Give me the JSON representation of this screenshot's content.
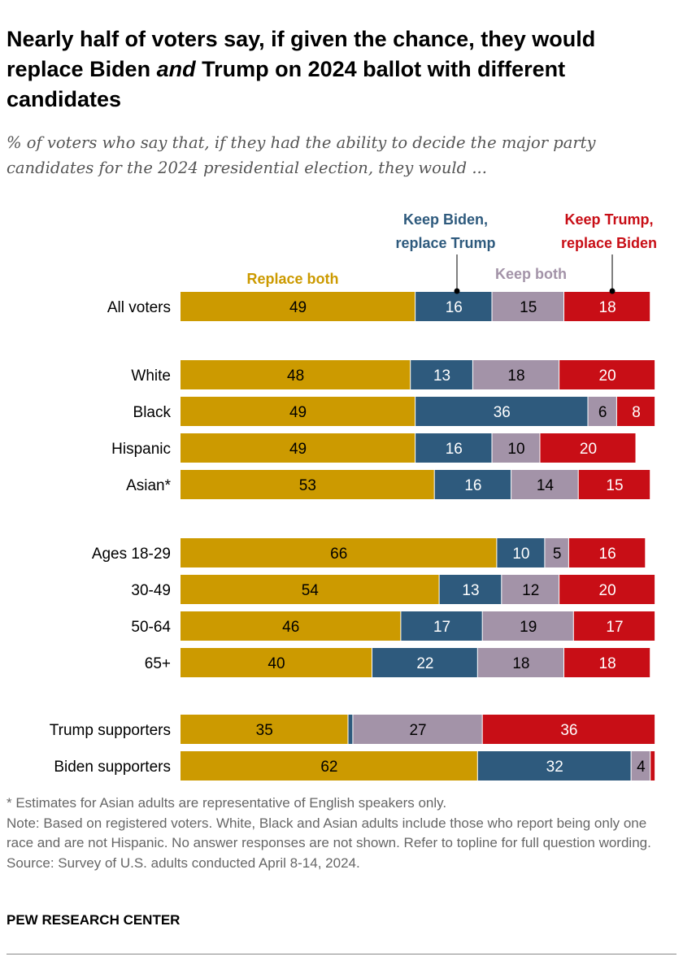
{
  "title_parts": [
    "Nearly half of voters say, if given the chance, they would replace Biden ",
    "and",
    " Trump on 2024 ballot with different candidates"
  ],
  "subtitle": "% of voters who say that, if they had the ability to decide the major party candidates for the 2024 presidential election, they would ...",
  "chart_data": {
    "type": "bar",
    "orientation": "horizontal",
    "stacked": true,
    "categories": [
      "All voters",
      "White",
      "Black",
      "Hispanic",
      "Asian*",
      "Ages 18-29",
      "30-49",
      "50-64",
      "65+",
      "Trump supporters",
      "Biden supporters"
    ],
    "series": [
      {
        "name": "Replace both",
        "color": "#CC9A00",
        "values": [
          49,
          48,
          49,
          49,
          53,
          66,
          54,
          46,
          40,
          35,
          62
        ]
      },
      {
        "name": "Keep Biden, replace Trump",
        "color": "#2E5A7D",
        "values": [
          16,
          13,
          36,
          16,
          16,
          10,
          13,
          17,
          22,
          1,
          32
        ]
      },
      {
        "name": "Keep both",
        "color": "#A393A8",
        "values": [
          15,
          18,
          6,
          10,
          14,
          5,
          12,
          19,
          18,
          27,
          4
        ]
      },
      {
        "name": "Keep Trump, replace Biden",
        "color": "#C80E16",
        "values": [
          18,
          20,
          8,
          20,
          15,
          16,
          20,
          17,
          18,
          36,
          1
        ]
      }
    ],
    "value_labels_shown_for_values_at_least": 2,
    "legend_placement": "above first bar",
    "xlim": [
      0,
      100
    ],
    "grid": false,
    "axis_shown": false
  },
  "legend": {
    "replace_both": "Replace both",
    "keep_biden": [
      "Keep Biden,",
      "replace Trump"
    ],
    "keep_both": "Keep both",
    "keep_trump": [
      "Keep Trump,",
      "replace Biden"
    ]
  },
  "notes": {
    "asterisk": "* Estimates for Asian adults are representative of English speakers only.",
    "note": "Note: Based on registered voters. White, Black and Asian adults include those who report being only one race and are not Hispanic. No answer responses are not shown. Refer to topline for full question wording.",
    "source": "Source: Survey of U.S. adults conducted April 8-14, 2024."
  },
  "brand": "PEW RESEARCH CENTER"
}
